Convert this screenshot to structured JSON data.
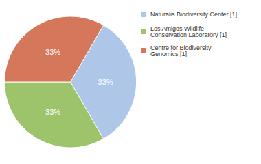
{
  "chart_data": {
    "type": "pie",
    "categories": [
      "Naturalis Biodiversity Center [1]",
      "Los Amigos Wildlife\nConservation Laboratory [1]",
      "Centre for Biodiversity\nGenomics [1]"
    ],
    "values": [
      33,
      33,
      33
    ],
    "value_labels": [
      "33%",
      "33%",
      "33%"
    ],
    "colors": [
      "#aec6e8",
      "#9dc36b",
      "#d4775a"
    ],
    "data_labels": true,
    "legend": "right"
  }
}
